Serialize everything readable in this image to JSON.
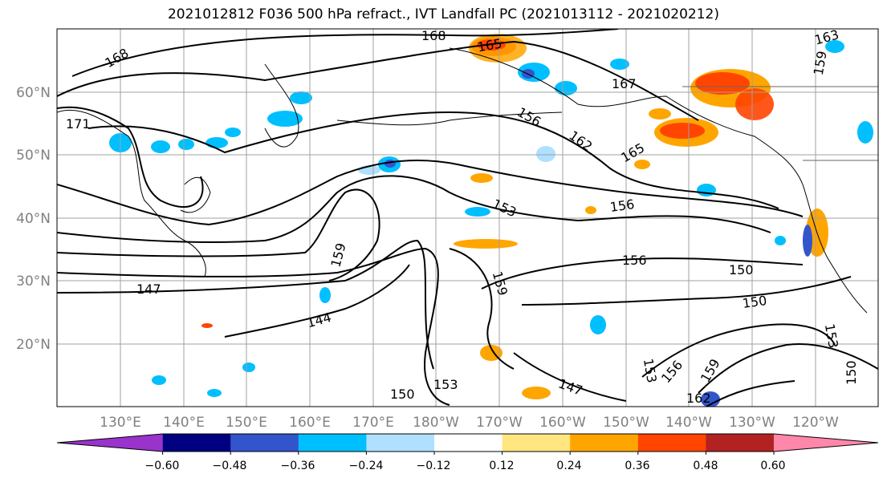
{
  "title": "2021012812 F036 500 hPa refract., IVT Landfall PC (2021013112 - 2021020212)",
  "lat_labels": [
    "60°N",
    "50°N",
    "40°N",
    "30°N",
    "20°N"
  ],
  "lon_labels": [
    "130°E",
    "140°E",
    "150°E",
    "160°E",
    "170°E",
    "180°W",
    "170°W",
    "160°W",
    "150°W",
    "140°W",
    "130°W",
    "120°W"
  ],
  "colorbar": {
    "ticks": [
      "−0.60",
      "−0.48",
      "−0.36",
      "−0.24",
      "−0.12",
      "0.12",
      "0.24",
      "0.36",
      "0.48",
      "0.60"
    ],
    "colors": [
      "#9933cc",
      "#000080",
      "#3355cc",
      "#00bfff",
      "#b0e0ff",
      "#ffffff",
      "#ffe680",
      "#ffa500",
      "#ff4500",
      "#b22222",
      "#ff88aa"
    ]
  },
  "contour_labels": [
    "168",
    "165",
    "171",
    "168",
    "163",
    "167",
    "156",
    "165",
    "162",
    "159",
    "153",
    "156",
    "159",
    "147",
    "144",
    "156",
    "150",
    "150",
    "159",
    "150",
    "153",
    "150",
    "156",
    "159",
    "162",
    "147",
    "153",
    "153"
  ],
  "colors": {
    "contour": "#000000",
    "grid": "#a0a0a0",
    "coast": "#000000",
    "axis_label": "#808080"
  }
}
